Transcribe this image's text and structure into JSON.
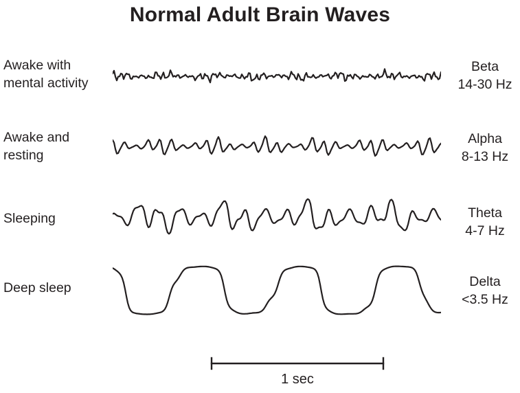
{
  "title": {
    "text": "Normal Adult Brain Waves"
  },
  "stroke_color": "#231f20",
  "waves": [
    {
      "id": "beta",
      "state_lines": [
        "Awake with",
        "mental activity"
      ],
      "band": "Beta",
      "range": "14-30 Hz",
      "render": {
        "cycles": 46,
        "amplitude": 7.5,
        "squash": 0,
        "components": [
          [
            1,
            0.8
          ],
          [
            0.47,
            0.45
          ],
          [
            1.9,
            0.5
          ],
          [
            0.13,
            0.3
          ]
        ],
        "phases": [
          0.9,
          2.3,
          5.1,
          1.4
        ],
        "env_cycles": 7.3,
        "env_depth": 0.35,
        "env_phase": 0.8
      }
    },
    {
      "id": "alpha",
      "state_lines": [
        "Awake and",
        "resting"
      ],
      "band": "Alpha",
      "range": "8-13 Hz",
      "render": {
        "cycles": 28,
        "amplitude": 12,
        "squash": 0,
        "components": [
          [
            1,
            1
          ],
          [
            0.5,
            0.3
          ],
          [
            2.0,
            0.22
          ],
          [
            0.23,
            0.2
          ]
        ],
        "phases": [
          1.7,
          4.2,
          0.6,
          2.9
        ],
        "env_cycles": 6.2,
        "env_depth": 0.4,
        "env_phase": 2.0
      }
    },
    {
      "id": "theta",
      "state_lines": [
        "Sleeping"
      ],
      "band": "Theta",
      "range": "4-7 Hz",
      "render": {
        "cycles": 15.5,
        "amplitude": 22,
        "squash": 0.8,
        "components": [
          [
            1,
            1
          ],
          [
            0.52,
            0.4
          ],
          [
            2.05,
            0.35
          ],
          [
            0.27,
            0.25
          ]
        ],
        "phases": [
          0.4,
          3.3,
          1.8,
          5.6
        ],
        "env_cycles": 4.3,
        "env_depth": 0.3,
        "env_phase": 4.0
      }
    },
    {
      "id": "delta",
      "state_lines": [
        "Deep sleep"
      ],
      "band": "Delta",
      "range": "<3.5 Hz",
      "render": {
        "cycles": 3.3,
        "amplitude": 34,
        "squash": 2.0,
        "components": [
          [
            1,
            1
          ],
          [
            2.1,
            0.12
          ],
          [
            6.2,
            0.06
          ],
          [
            0.45,
            0.08
          ]
        ],
        "phases": [
          2.4,
          0.9,
          3.7,
          5.2
        ],
        "env_cycles": 1.6,
        "env_depth": 0.07,
        "env_phase": 1.0
      }
    }
  ],
  "scale_bar": {
    "label": "1 sec"
  }
}
